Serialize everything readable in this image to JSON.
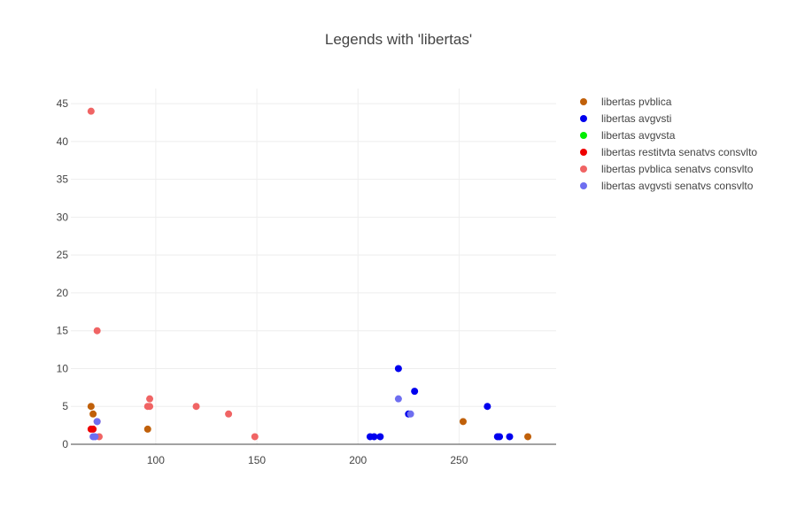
{
  "chart_data": {
    "type": "scatter",
    "title": "Legends with 'libertas'",
    "xlabel": "",
    "ylabel": "",
    "xlim": [
      58,
      298
    ],
    "ylim": [
      0,
      47
    ],
    "x_ticks": [
      100,
      150,
      200,
      250
    ],
    "y_ticks": [
      0,
      5,
      10,
      15,
      20,
      25,
      30,
      35,
      40,
      45
    ],
    "grid": true,
    "legend_position": "right",
    "series": [
      {
        "name": "libertas pvblica",
        "color": "#c0600a",
        "points": [
          [
            68,
            5
          ],
          [
            69,
            4
          ],
          [
            96,
            2
          ],
          [
            252,
            3
          ],
          [
            284,
            1
          ]
        ]
      },
      {
        "name": "libertas avgvsti",
        "color": "#0000ee",
        "points": [
          [
            206,
            1
          ],
          [
            208,
            1
          ],
          [
            211,
            1
          ],
          [
            220,
            10
          ],
          [
            225,
            4
          ],
          [
            228,
            7
          ],
          [
            264,
            5
          ],
          [
            269,
            1
          ],
          [
            270,
            1
          ],
          [
            275,
            1
          ]
        ]
      },
      {
        "name": "libertas avgvsta",
        "color": "#00ee00",
        "points": []
      },
      {
        "name": "libertas restitvta senatvs consvlto",
        "color": "#ee0000",
        "points": [
          [
            68,
            2
          ],
          [
            69,
            2
          ]
        ]
      },
      {
        "name": "libertas pvblica senatvs consvlto",
        "color": "#f06464",
        "points": [
          [
            68,
            44
          ],
          [
            71,
            15
          ],
          [
            71,
            3
          ],
          [
            72,
            1
          ],
          [
            96,
            5
          ],
          [
            97,
            5
          ],
          [
            97,
            6
          ],
          [
            120,
            5
          ],
          [
            136,
            4
          ],
          [
            149,
            1
          ]
        ]
      },
      {
        "name": "libertas avgvsti senatvs consvlto",
        "color": "#6e6ef0",
        "points": [
          [
            69,
            1
          ],
          [
            70,
            1
          ],
          [
            71,
            3
          ],
          [
            220,
            6
          ],
          [
            226,
            4
          ]
        ]
      }
    ]
  }
}
